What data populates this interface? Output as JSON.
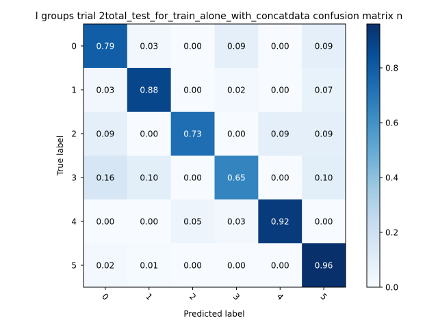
{
  "chart_data": {
    "type": "heatmap",
    "title": "l groups trial 2total_test_for_train_alone_with_concatdata confusion matrix n",
    "xlabel": "Predicted label",
    "ylabel": "True label",
    "x_categories": [
      "0",
      "1",
      "2",
      "3",
      "4",
      "5"
    ],
    "y_categories": [
      "0",
      "1",
      "2",
      "3",
      "4",
      "5"
    ],
    "values": [
      [
        0.79,
        0.03,
        0.0,
        0.09,
        0.0,
        0.09
      ],
      [
        0.03,
        0.88,
        0.0,
        0.02,
        0.0,
        0.07
      ],
      [
        0.09,
        0.0,
        0.73,
        0.0,
        0.09,
        0.09
      ],
      [
        0.16,
        0.1,
        0.0,
        0.65,
        0.0,
        0.1
      ],
      [
        0.0,
        0.0,
        0.05,
        0.03,
        0.92,
        0.0
      ],
      [
        0.02,
        0.01,
        0.0,
        0.0,
        0.0,
        0.96
      ]
    ],
    "value_format": "0.00",
    "colormap": "Blues",
    "color_range": [
      0.0,
      0.96
    ],
    "colorbar": {
      "ticks": [
        0.0,
        0.2,
        0.4,
        0.6,
        0.8
      ],
      "tick_labels": [
        "0.0",
        "0.2",
        "0.4",
        "0.6",
        "0.8"
      ]
    },
    "x_tick_rotation": "45 degrees",
    "grid": false
  }
}
